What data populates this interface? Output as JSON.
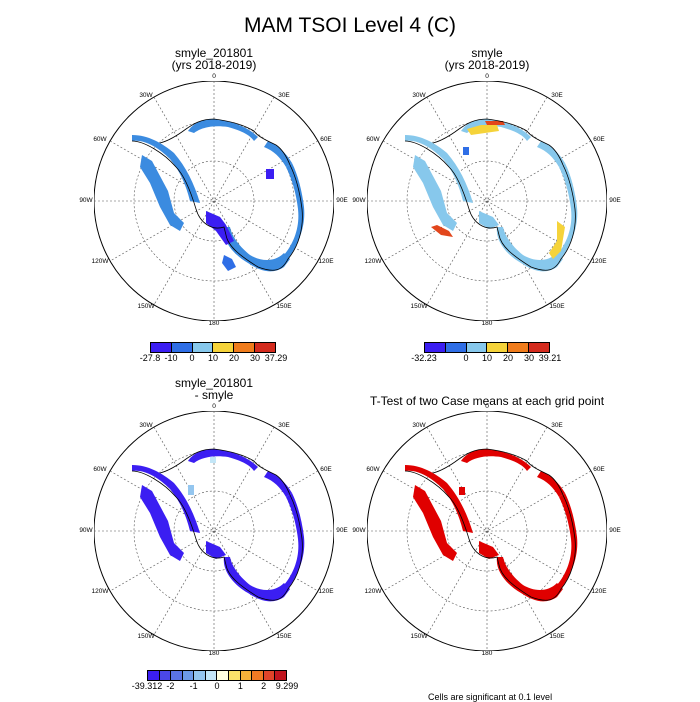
{
  "figure": {
    "main_title": "MAM TSOI Level 4 (C)",
    "footnote": "Cells are significant at 0.1 level"
  },
  "panels": [
    {
      "title": "smyle_201801\n(yrs 2018-2019)",
      "colorbar": {
        "colors": [
          "#3b1ef2",
          "#2f6ee6",
          "#87c8ec",
          "#f5d33a",
          "#f07c1c",
          "#d42b1e"
        ],
        "labels": [
          "-27.8",
          "-10",
          "0",
          "10",
          "20",
          "30",
          "37.29"
        ]
      }
    },
    {
      "title": "smyle\n(yrs 2018-2019)",
      "colorbar": {
        "colors": [
          "#3b1ef2",
          "#2f6ee6",
          "#87c8ec",
          "#f5d33a",
          "#f07c1c",
          "#d42b1e"
        ],
        "labels": [
          "-32.23",
          "0",
          "10",
          "20",
          "30",
          "39.21"
        ]
      }
    },
    {
      "title": "smyle_201801\n- smyle",
      "colorbar": {
        "colors": [
          "#3b1ef2",
          "#4a47e8",
          "#5a73e6",
          "#6d9ae9",
          "#94c6ef",
          "#c3e6f7",
          "#ffffe0",
          "#fbe36a",
          "#f7b13a",
          "#ef7a24",
          "#e0442a",
          "#c1141e"
        ],
        "labels": [
          "-39.312",
          "-2",
          "-1",
          "0",
          "1",
          "2",
          "9.299"
        ]
      }
    },
    {
      "title": "T-Test of two Case means at each grid point"
    }
  ],
  "map_labels": {
    "top": "0",
    "r30e": "30E",
    "r60e": "60E",
    "r90e": "90E",
    "r120e": "120E",
    "r150e": "150E",
    "bottom": "180",
    "l150w": "150W",
    "l120w": "120W",
    "l90w": "90W",
    "l60w": "60W",
    "l30w": "30W"
  },
  "colors": {
    "p1_fill": "#3b8be0",
    "p1_accent": "#3b1ef2",
    "p2_fill": "#87c8ec",
    "p2_accent_yellow": "#f5d33a",
    "p2_accent_red": "#e2461c",
    "p3_fill": "#3b1ef2",
    "p4_fill": "#e00000"
  }
}
